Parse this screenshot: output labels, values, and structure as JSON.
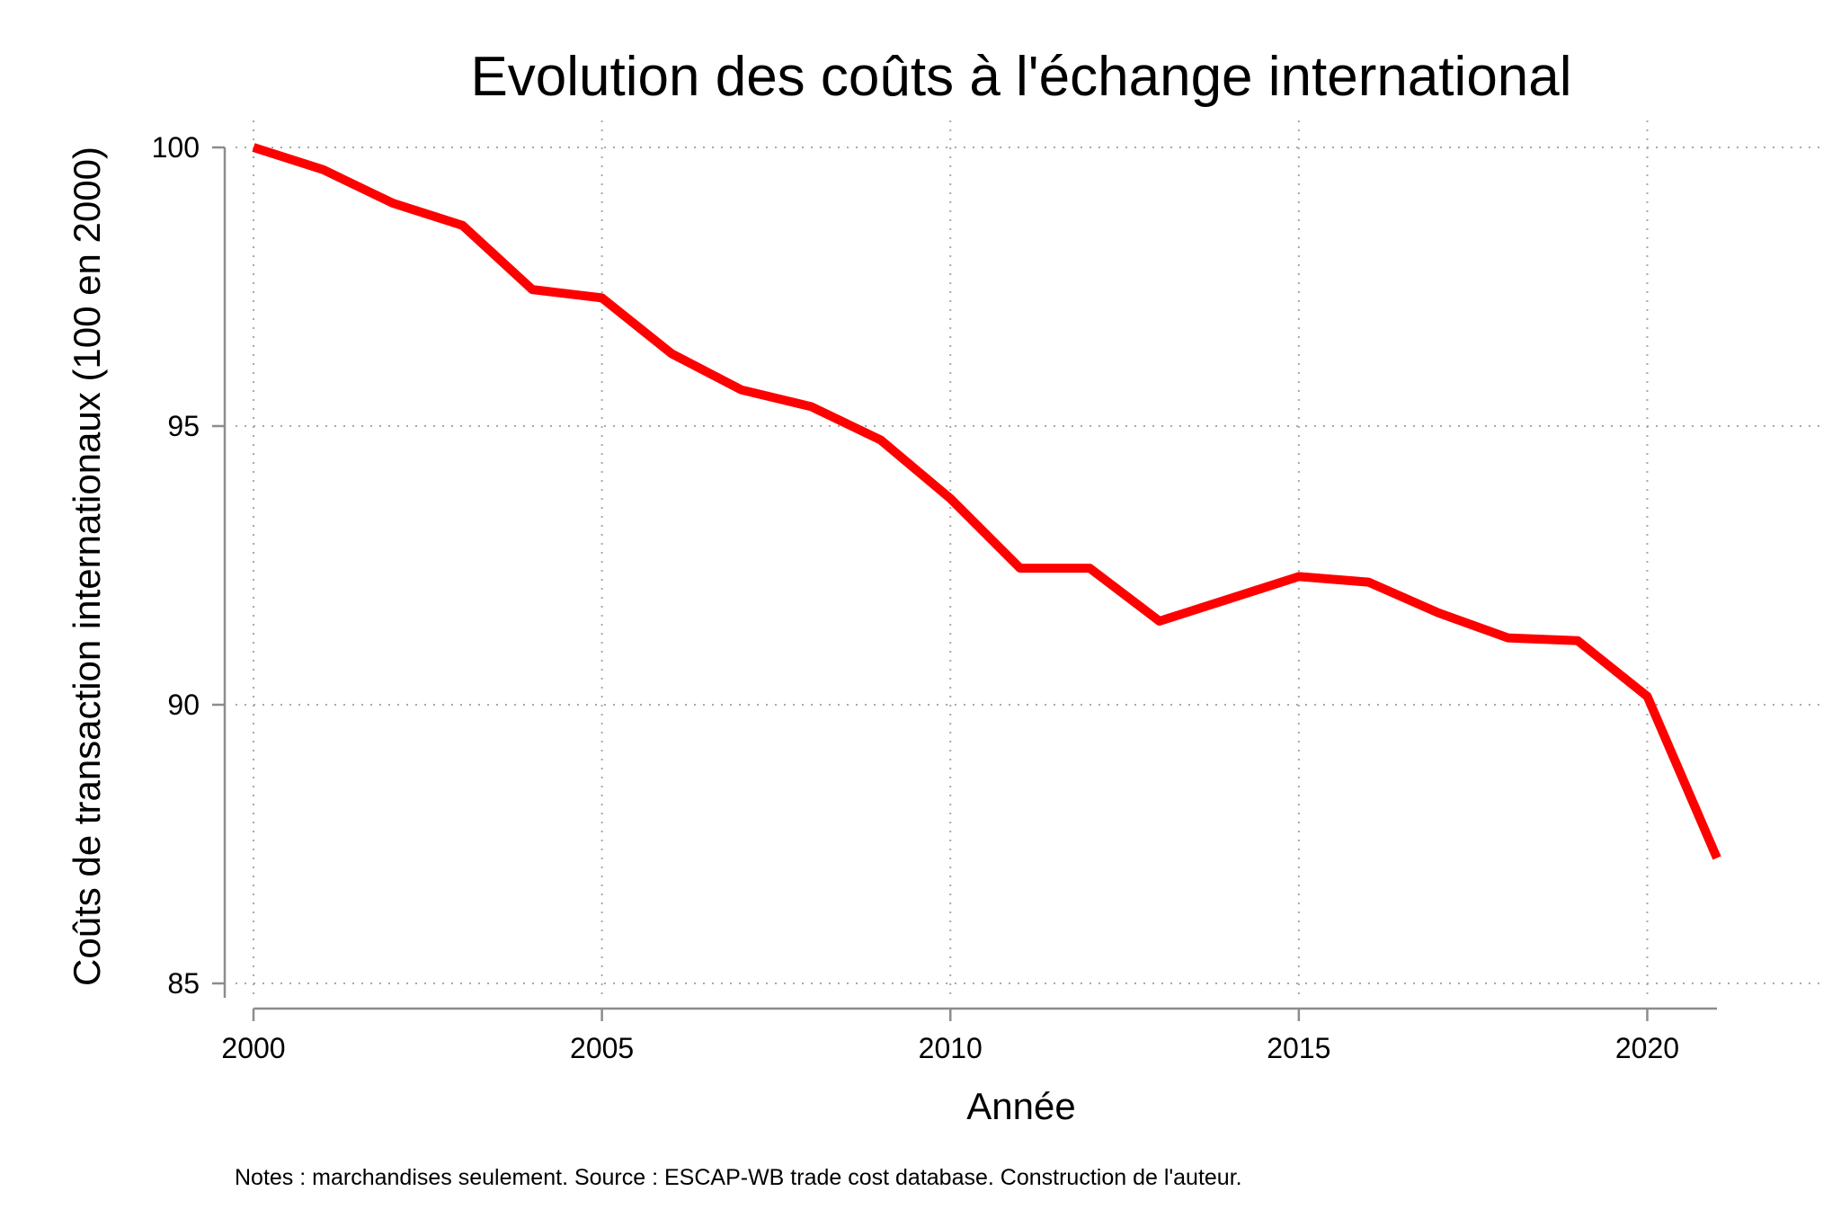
{
  "chart_data": {
    "type": "line",
    "title": "Evolution des coûts à l'échange international",
    "xlabel": "Année",
    "ylabel": "Coûts de transaction internationaux (100 en 2000)",
    "note": "Notes : marchandises seulement. Source : ESCAP-WB trade cost database. Construction de l'auteur.",
    "xlim": [
      2000,
      2021
    ],
    "ylim": [
      85,
      100
    ],
    "xticks": [
      2000,
      2005,
      2010,
      2015,
      2020
    ],
    "yticks": [
      85,
      90,
      95,
      100
    ],
    "grid": true,
    "line_color": "#ff0000",
    "series": [
      {
        "x": [
          2000,
          2001,
          2002,
          2003,
          2004,
          2005,
          2006,
          2007,
          2008,
          2009,
          2010,
          2011,
          2012,
          2013,
          2014,
          2015,
          2016,
          2017,
          2018,
          2019,
          2020,
          2021
        ],
        "values": [
          100.0,
          99.6,
          99.0,
          98.6,
          97.45,
          97.3,
          96.3,
          95.65,
          95.35,
          94.75,
          93.7,
          92.45,
          92.45,
          91.5,
          91.9,
          92.3,
          92.2,
          91.65,
          91.2,
          91.15,
          90.15,
          87.25
        ]
      }
    ]
  }
}
